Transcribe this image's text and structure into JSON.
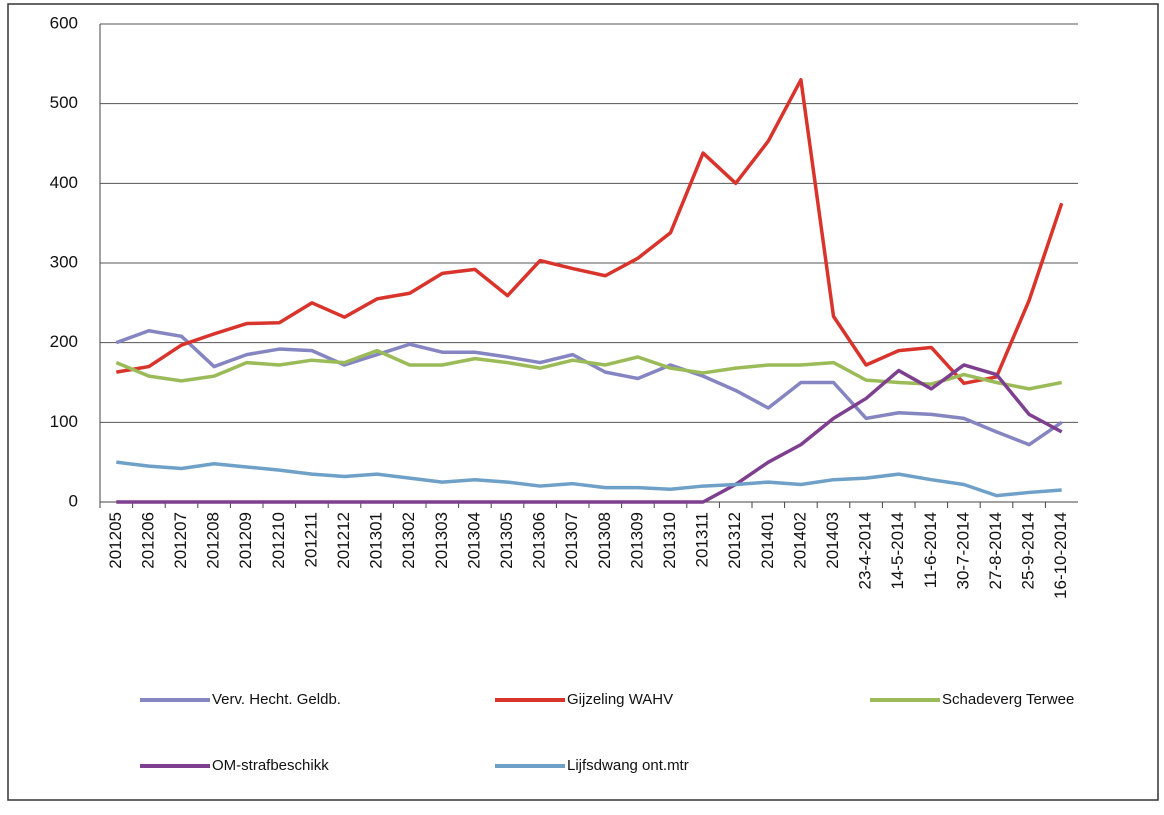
{
  "chart_data": {
    "type": "line",
    "categories": [
      "201205",
      "201206",
      "201207",
      "201208",
      "201209",
      "201210",
      "201211",
      "201212",
      "201301",
      "201302",
      "201303",
      "201304",
      "201305",
      "201306",
      "201307",
      "201308",
      "201309",
      "201310",
      "201311",
      "201312",
      "201401",
      "201402",
      "201403",
      "23-4-2014",
      "14-5-2014",
      "11-6-2014",
      "30-7-2014",
      "27-8-2014",
      "25-9-2014",
      "16-10-2014"
    ],
    "series": [
      {
        "name": "Verv. Hecht. Geldb.",
        "color": "#8585c2",
        "values": [
          200,
          215,
          208,
          170,
          185,
          192,
          190,
          172,
          185,
          198,
          188,
          188,
          182,
          175,
          185,
          163,
          155,
          172,
          158,
          140,
          118,
          150,
          150,
          105,
          112,
          110,
          105,
          88,
          72,
          100
        ]
      },
      {
        "name": "Gijzeling WAHV",
        "color": "#d9342c",
        "values": [
          163,
          170,
          197,
          211,
          224,
          225,
          250,
          232,
          255,
          262,
          287,
          292,
          259,
          303,
          293,
          284,
          306,
          338,
          438,
          400,
          453,
          530,
          233,
          172,
          190,
          194,
          149,
          157,
          253,
          375
        ]
      },
      {
        "name": "Schadeverg Terwee",
        "color": "#9bbb59",
        "values": [
          175,
          158,
          152,
          158,
          175,
          172,
          178,
          175,
          190,
          172,
          172,
          180,
          175,
          168,
          178,
          172,
          182,
          168,
          162,
          168,
          172,
          172,
          175,
          153,
          150,
          148,
          160,
          150,
          142,
          150
        ]
      },
      {
        "name": "OM-strafbeschikk",
        "color": "#7e3f8f",
        "values": [
          0,
          0,
          0,
          0,
          0,
          0,
          0,
          0,
          0,
          0,
          0,
          0,
          0,
          0,
          0,
          0,
          0,
          0,
          0,
          22,
          50,
          72,
          105,
          130,
          165,
          142,
          172,
          160,
          110,
          88
        ]
      },
      {
        "name": "Lijfsdwang ont.mtr",
        "color": "#6fa0c8",
        "values": [
          50,
          45,
          42,
          48,
          44,
          40,
          35,
          32,
          35,
          30,
          25,
          28,
          25,
          20,
          23,
          18,
          18,
          16,
          20,
          22,
          25,
          22,
          28,
          30,
          35,
          28,
          22,
          8,
          12,
          15
        ]
      }
    ],
    "ylim": [
      0,
      600
    ],
    "yticks": [
      0,
      100,
      200,
      300,
      400,
      500,
      600
    ],
    "grid": true,
    "legend": "bottom"
  }
}
